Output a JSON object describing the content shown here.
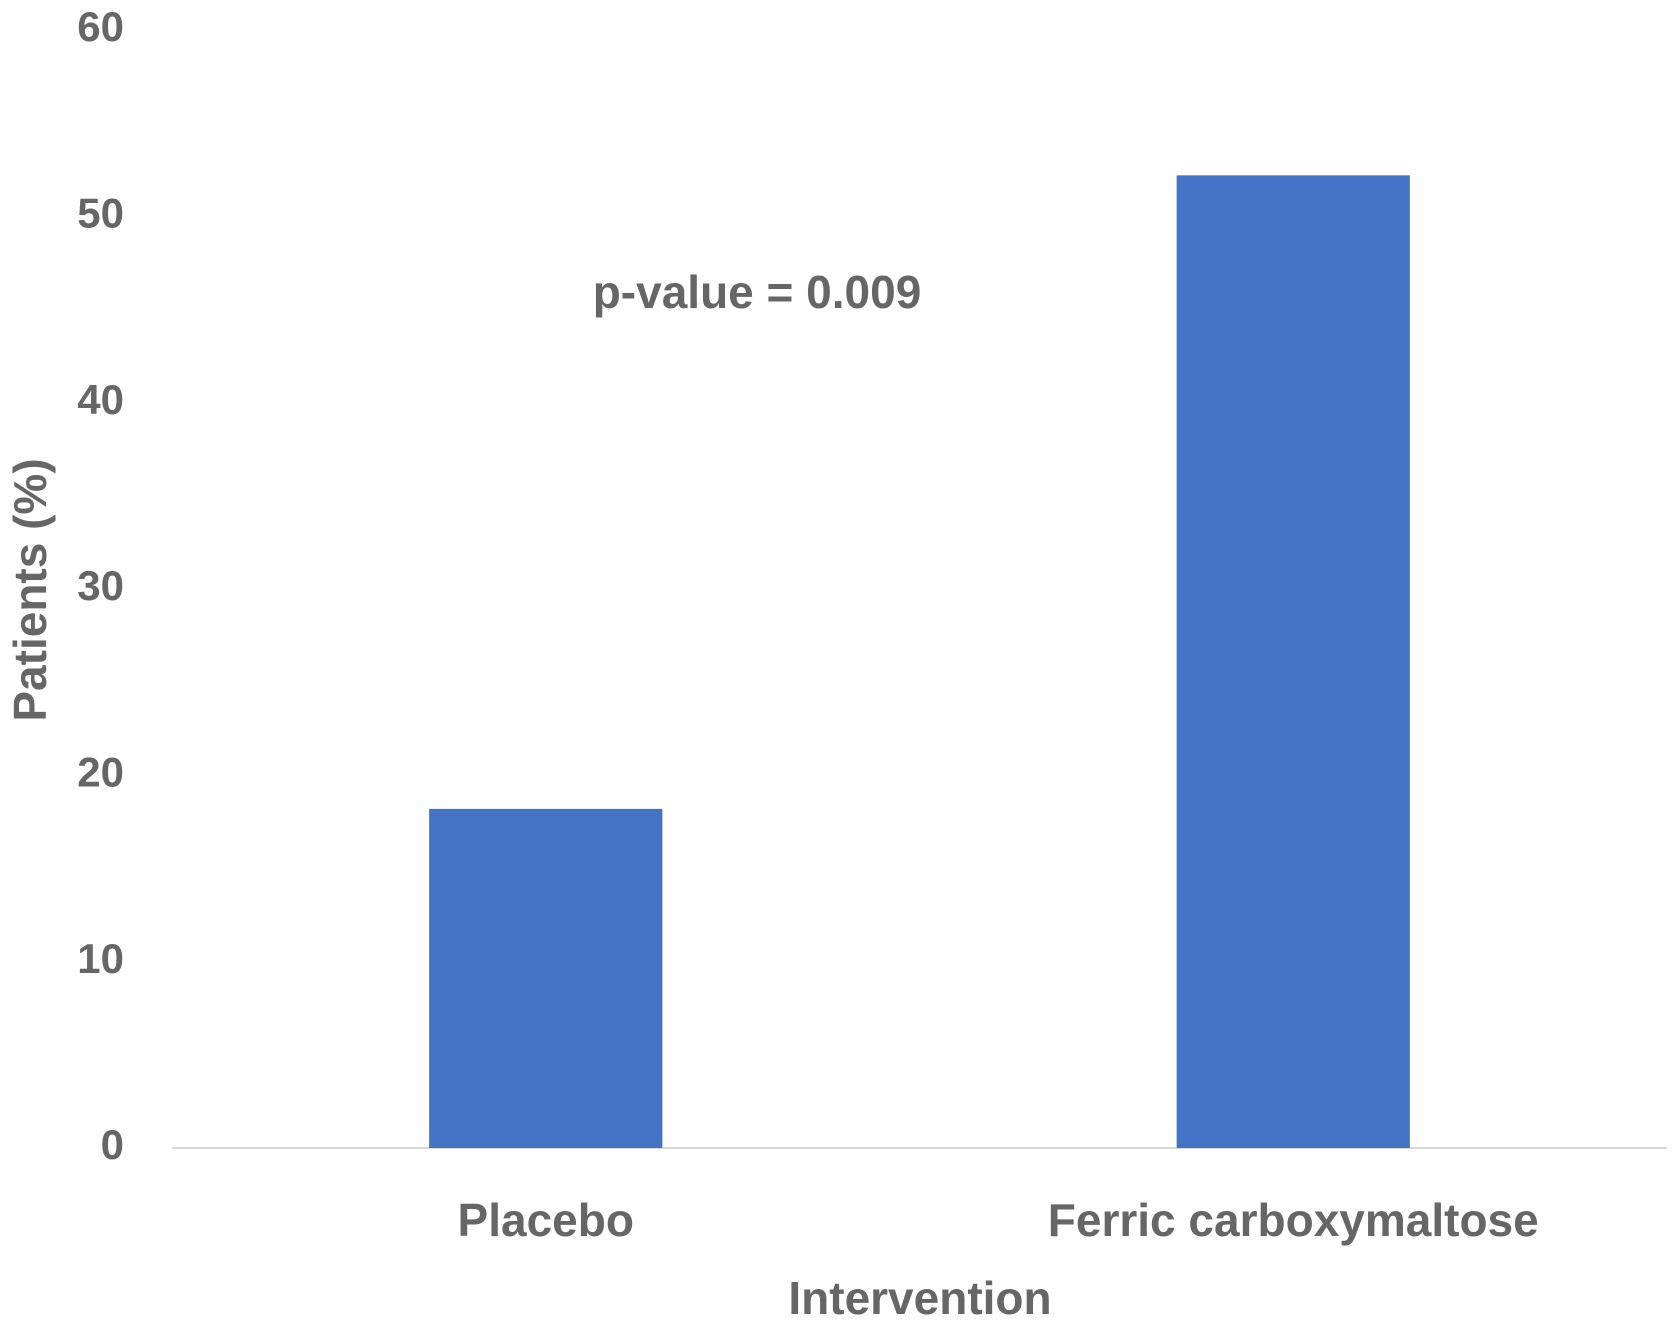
{
  "chart_data": {
    "type": "bar",
    "x_label": "Intervention",
    "y_label": "Patients (%)",
    "annotation": "p-value = 0.009",
    "categories": [
      "Placebo",
      "Ferric carboxymaltose"
    ],
    "values": [
      18.2,
      52.2
    ],
    "color": "#4472c4",
    "ylim": [
      0,
      60
    ],
    "yticks": [
      0,
      10,
      20,
      30,
      40,
      50,
      60
    ],
    "grid": false
  }
}
